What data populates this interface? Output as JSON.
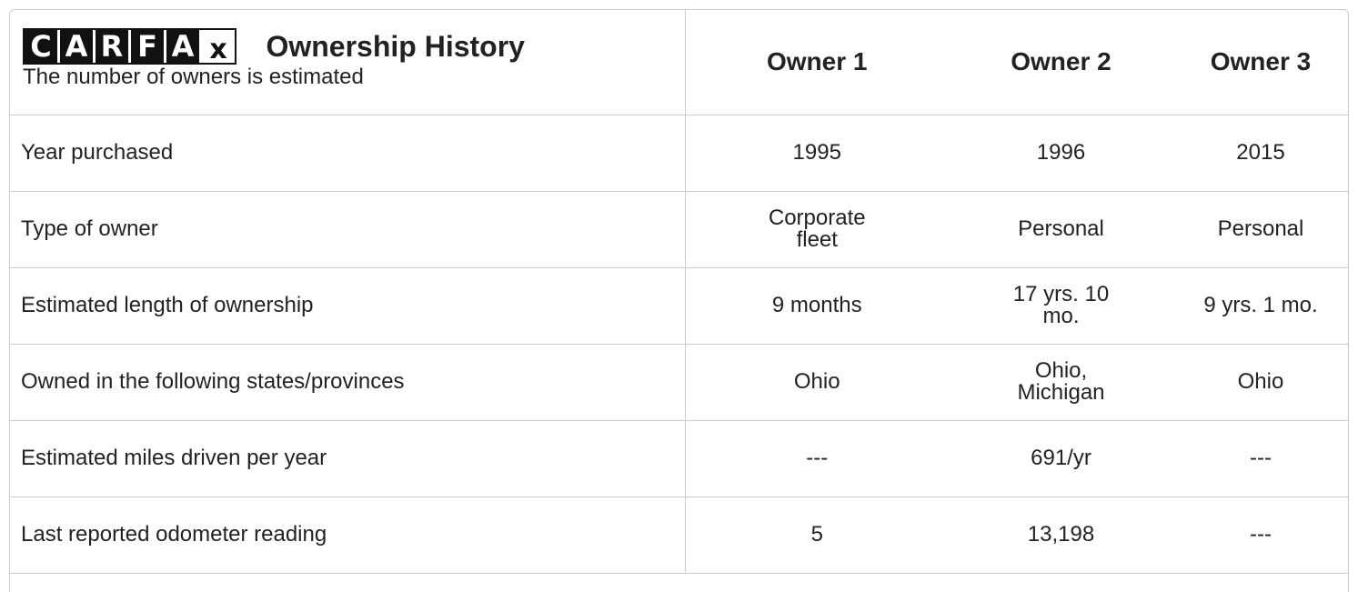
{
  "header": {
    "logo": [
      "C",
      "A",
      "R",
      "F",
      "A",
      "x"
    ],
    "title": "Ownership History",
    "subtitle": "The number of owners is estimated"
  },
  "table": {
    "columns": [
      "Owner 1",
      "Owner 2",
      "Owner 3"
    ],
    "rows": [
      [
        "Year purchased",
        "1995",
        "1996",
        "2015"
      ],
      [
        "Type of owner",
        "Corporate fleet",
        "Personal",
        "Personal"
      ],
      [
        "Estimated length of ownership",
        "9 months",
        "17 yrs. 10 mo.",
        "9 yrs. 1 mo."
      ],
      [
        "Owned in the following states/provinces",
        "Ohio",
        "Ohio, Michigan",
        "Ohio"
      ],
      [
        "Estimated miles driven per year",
        "---",
        "691/yr",
        "---"
      ],
      [
        "Last reported odometer reading",
        "5",
        "13,198",
        "---"
      ]
    ]
  }
}
